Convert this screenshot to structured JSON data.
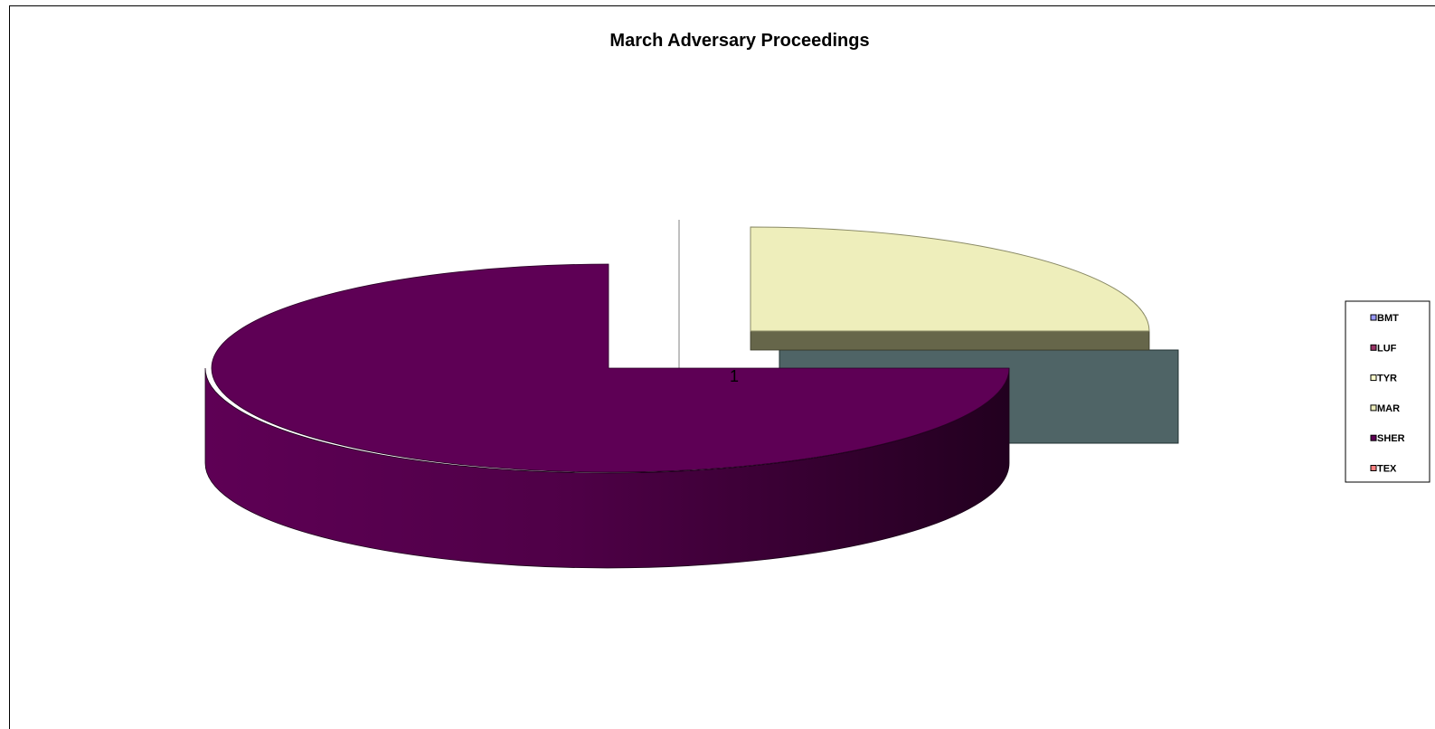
{
  "chart_data": {
    "type": "pie",
    "title": "March Adversary Proceedings",
    "category_label": "1",
    "slices": [
      {
        "name": "BMT",
        "value": 0,
        "color": "#9999ff"
      },
      {
        "name": "LUF",
        "value": 0,
        "color": "#993366"
      },
      {
        "name": "TYR",
        "value": 0,
        "color": "#ffffcc"
      },
      {
        "name": "MAR",
        "value": 5,
        "color": "#eeeebb"
      },
      {
        "name": "SHER",
        "value": 15,
        "color": "#5e0055"
      },
      {
        "name": "TEX",
        "value": 0,
        "color": "#ff8080"
      }
    ],
    "extra_wedge_color": "#4f6466",
    "legend_position": "right",
    "is_3d": true
  }
}
